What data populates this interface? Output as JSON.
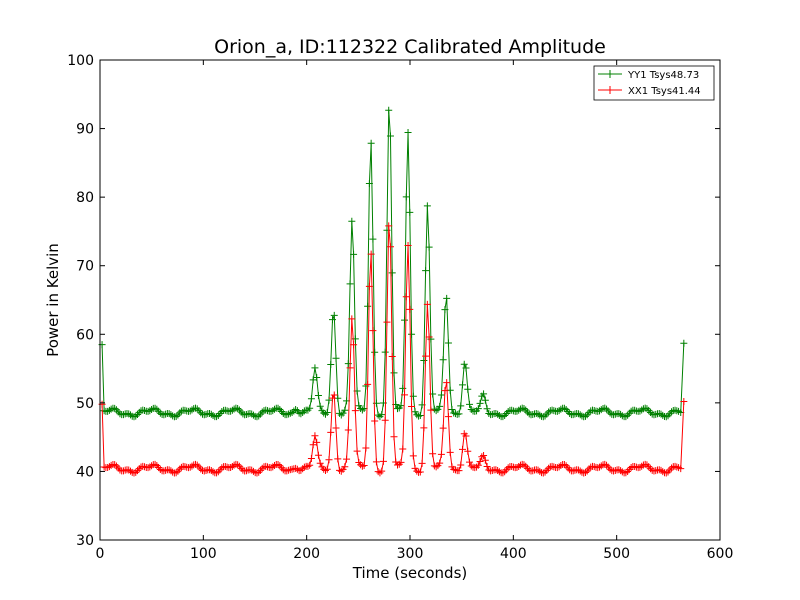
{
  "chart_data": {
    "type": "line",
    "title": "Orion_a, ID:112322 Calibrated Amplitude",
    "xlabel": "Time (seconds)",
    "ylabel": "Power in Kelvin",
    "xlim": [
      0,
      600
    ],
    "ylim": [
      30,
      100
    ],
    "xticks": [
      0,
      100,
      200,
      300,
      400,
      500,
      600
    ],
    "yticks": [
      30,
      40,
      50,
      60,
      70,
      80,
      90,
      100
    ],
    "legend_position": "top-right",
    "grid": false,
    "marker": "plus",
    "series": [
      {
        "name": "YY1 Tsys48.73",
        "color": "#008000",
        "baseline": 48.6,
        "ripple": 0.45,
        "edge_values": [
          {
            "x": 2,
            "y": 58.5
          },
          {
            "x": 565,
            "y": 58.7
          }
        ],
        "peaks": [
          {
            "x": 190,
            "y": 49.6
          },
          {
            "x": 208,
            "y": 54.7
          },
          {
            "x": 226,
            "y": 63.8
          },
          {
            "x": 244,
            "y": 76.6
          },
          {
            "x": 262,
            "y": 88.7
          },
          {
            "x": 280,
            "y": 94.0
          },
          {
            "x": 298,
            "y": 89.8
          },
          {
            "x": 317,
            "y": 78.6
          },
          {
            "x": 335,
            "y": 65.8
          },
          {
            "x": 353,
            "y": 56.2
          },
          {
            "x": 371,
            "y": 50.8
          }
        ]
      },
      {
        "name": "XX1 Tsys41.44",
        "color": "#ff0000",
        "baseline": 40.4,
        "ripple": 0.45,
        "edge_values": [
          {
            "x": 2,
            "y": 49.8
          },
          {
            "x": 565,
            "y": 50.2
          }
        ],
        "peaks": [
          {
            "x": 190,
            "y": 41.0
          },
          {
            "x": 208,
            "y": 44.8
          },
          {
            "x": 226,
            "y": 52.0
          },
          {
            "x": 244,
            "y": 62.3
          },
          {
            "x": 262,
            "y": 72.4
          },
          {
            "x": 280,
            "y": 76.8
          },
          {
            "x": 298,
            "y": 73.3
          },
          {
            "x": 317,
            "y": 64.2
          },
          {
            "x": 335,
            "y": 53.4
          },
          {
            "x": 353,
            "y": 46.0
          },
          {
            "x": 371,
            "y": 41.8
          }
        ]
      }
    ]
  }
}
